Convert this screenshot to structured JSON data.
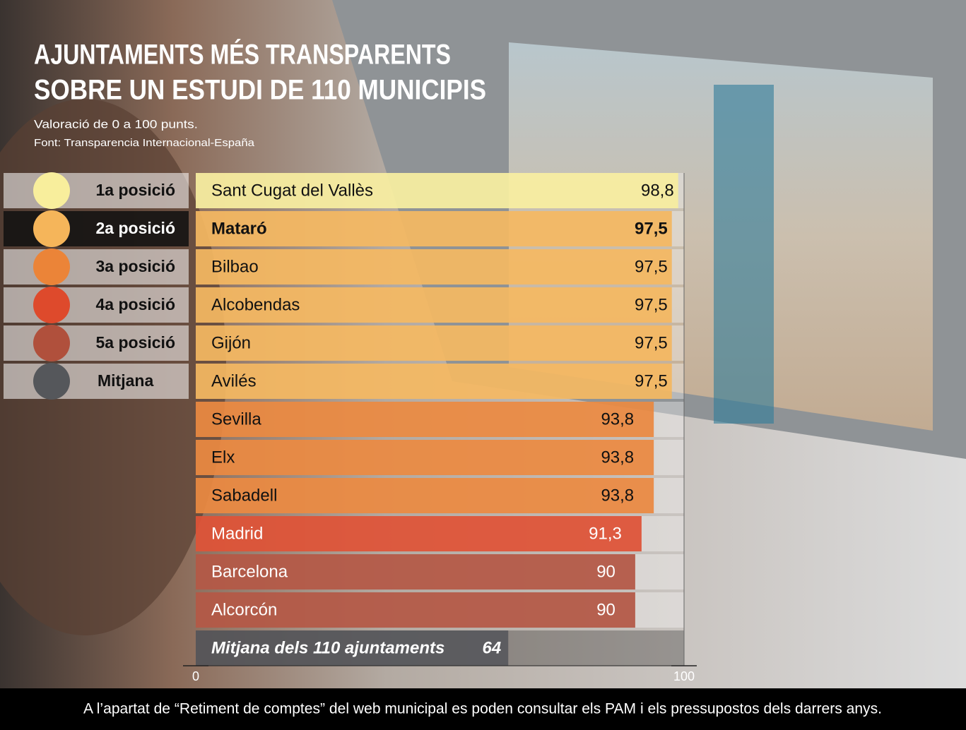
{
  "chart_data": {
    "type": "bar",
    "orientation": "horizontal",
    "title": [
      "AJUNTAMENTS MÉS TRANSPARENTS",
      "SOBRE UN ESTUDI DE 110 MUNICIPIS"
    ],
    "subtitle": "Valoració de 0 a 100 punts.",
    "source": "Font: Transparencia Internacional-España",
    "categories": [
      "Sant Cugat del Vallès",
      "Mataró",
      "Bilbao",
      "Alcobendas",
      "Gijón",
      "Avilés",
      "Sevilla",
      "Elx",
      "Sabadell",
      "Madrid",
      "Barcelona",
      "Alcorcón",
      "Mitjana dels 110 ajuntaments"
    ],
    "values": [
      98.8,
      97.5,
      97.5,
      97.5,
      97.5,
      97.5,
      93.8,
      93.8,
      93.8,
      91.3,
      90,
      90,
      64
    ],
    "value_labels": [
      "98,8",
      "97,5",
      "97,5",
      "97,5",
      "97,5",
      "97,5",
      "93,8",
      "93,8",
      "93,8",
      "91,3",
      "90",
      "90",
      "64"
    ],
    "colors": [
      "#f8ee9c",
      "#f5b55a",
      "#f5b55a",
      "#f5b55a",
      "#f5b55a",
      "#f5b55a",
      "#eb8438",
      "#eb8438",
      "#eb8438",
      "#de4a2c",
      "#b0503c",
      "#b0503c",
      "#55575b"
    ],
    "highlight_index": 1,
    "legend": [
      {
        "name": "1a posició",
        "color": "#f8ee9c"
      },
      {
        "name": "2a posició",
        "color": "#f5b55a"
      },
      {
        "name": "3a posició",
        "color": "#eb8438"
      },
      {
        "name": "4a posició",
        "color": "#de4a2c"
      },
      {
        "name": "5a posició",
        "color": "#b0503c"
      },
      {
        "name": "Mitjana",
        "color": "#55575b"
      }
    ],
    "xlim": [
      0,
      100
    ],
    "xticks": [
      0,
      100
    ],
    "note": "A l’apartat de “Retiment de comptes” del web municipal es poden consultar els PAM i els pressupostos dels darrers anys."
  }
}
